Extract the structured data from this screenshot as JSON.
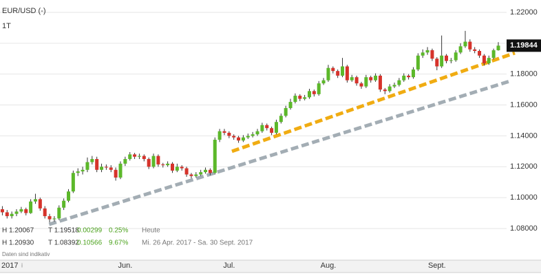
{
  "chart_data": {
    "type": "candlestick",
    "title": "EUR/USD (-)",
    "interval": "1T",
    "categories": [
      "2017",
      null,
      null,
      null,
      null,
      null,
      null,
      null,
      null,
      null,
      null,
      null,
      null,
      null,
      null,
      null,
      null,
      null,
      null,
      null,
      null,
      null,
      null,
      null,
      null,
      null,
      "Jun.",
      null,
      null,
      null,
      null,
      null,
      null,
      null,
      null,
      null,
      null,
      null,
      null,
      null,
      null,
      null,
      null,
      null,
      null,
      null,
      null,
      null,
      "Jul.",
      null,
      null,
      null,
      null,
      null,
      null,
      null,
      null,
      null,
      null,
      null,
      null,
      null,
      null,
      null,
      null,
      null,
      null,
      null,
      null,
      "Aug.",
      null,
      null,
      null,
      null,
      null,
      null,
      null,
      null,
      null,
      null,
      null,
      null,
      null,
      null,
      null,
      null,
      null,
      null,
      null,
      null,
      null,
      null,
      "Sept.",
      null,
      null,
      null,
      null,
      null,
      null,
      null,
      null,
      null,
      null,
      null,
      null,
      null
    ],
    "open": [
      1.0925,
      1.0905,
      1.088,
      1.0895,
      1.091,
      1.0925,
      1.09,
      1.0975,
      1.099,
      1.093,
      1.088,
      1.086,
      1.0865,
      1.0935,
      1.098,
      1.104,
      1.116,
      1.117,
      1.118,
      1.123,
      1.125,
      1.118,
      1.12,
      1.1195,
      1.118,
      1.113,
      1.122,
      1.125,
      1.128,
      1.1265,
      1.127,
      1.125,
      1.12,
      1.127,
      1.1215,
      1.121,
      1.122,
      1.1175,
      1.12,
      1.119,
      1.115,
      1.114,
      1.115,
      1.1165,
      1.118,
      1.116,
      1.1375,
      1.143,
      1.142,
      1.14,
      1.139,
      1.137,
      1.139,
      1.14,
      1.141,
      1.143,
      1.147,
      1.145,
      1.142,
      1.149,
      1.153,
      1.158,
      1.162,
      1.166,
      1.164,
      1.165,
      1.169,
      1.167,
      1.174,
      1.176,
      1.184,
      1.182,
      1.179,
      1.185,
      1.176,
      1.178,
      1.174,
      1.172,
      1.178,
      1.176,
      1.179,
      1.17,
      1.169,
      1.172,
      1.173,
      1.176,
      1.179,
      1.178,
      1.183,
      1.192,
      1.194,
      1.1955,
      1.19,
      1.185,
      1.192,
      1.1885,
      1.189,
      1.194,
      1.198,
      1.201,
      1.196,
      1.195,
      1.192,
      1.187,
      1.1905,
      1.19545
    ],
    "high": [
      1.0945,
      1.092,
      1.091,
      1.0925,
      1.094,
      1.0935,
      1.099,
      1.1025,
      1.1,
      1.0945,
      1.0895,
      1.088,
      1.095,
      1.0995,
      1.1055,
      1.1175,
      1.119,
      1.12,
      1.126,
      1.127,
      1.1265,
      1.122,
      1.1215,
      1.121,
      1.1195,
      1.1235,
      1.1265,
      1.1295,
      1.129,
      1.1285,
      1.128,
      1.126,
      1.1285,
      1.128,
      1.1225,
      1.1235,
      1.123,
      1.122,
      1.121,
      1.12,
      1.116,
      1.1165,
      1.118,
      1.1195,
      1.119,
      1.139,
      1.1445,
      1.1445,
      1.143,
      1.141,
      1.14,
      1.1405,
      1.1415,
      1.1425,
      1.1445,
      1.1485,
      1.148,
      1.146,
      1.1505,
      1.1545,
      1.1595,
      1.164,
      1.1675,
      1.167,
      1.1665,
      1.1705,
      1.17,
      1.1755,
      1.1775,
      1.186,
      1.185,
      1.183,
      1.1905,
      1.186,
      1.1795,
      1.179,
      1.175,
      1.1795,
      1.179,
      1.1805,
      1.18,
      1.171,
      1.1735,
      1.1745,
      1.1775,
      1.1805,
      1.18,
      1.1845,
      1.1935,
      1.196,
      1.1975,
      1.1965,
      1.191,
      1.205,
      1.193,
      1.1905,
      1.1955,
      1.2,
      1.208,
      1.2025,
      1.1975,
      1.196,
      1.193,
      1.192,
      1.1965,
      1.20067
    ],
    "low": [
      1.0885,
      1.0865,
      1.0865,
      1.088,
      1.09,
      1.0885,
      1.0895,
      1.096,
      1.0915,
      1.0865,
      1.084,
      1.0845,
      1.0855,
      1.092,
      1.097,
      1.103,
      1.114,
      1.115,
      1.1165,
      1.1215,
      1.1165,
      1.1165,
      1.118,
      1.1165,
      1.111,
      1.112,
      1.1205,
      1.124,
      1.125,
      1.125,
      1.1235,
      1.1185,
      1.119,
      1.12,
      1.1195,
      1.12,
      1.116,
      1.1165,
      1.1175,
      1.1135,
      1.1125,
      1.113,
      1.114,
      1.1155,
      1.1145,
      1.115,
      1.136,
      1.1405,
      1.1385,
      1.1375,
      1.1355,
      1.136,
      1.138,
      1.139,
      1.14,
      1.142,
      1.1435,
      1.1405,
      1.141,
      1.148,
      1.152,
      1.157,
      1.161,
      1.1625,
      1.163,
      1.164,
      1.1655,
      1.166,
      1.173,
      1.175,
      1.1805,
      1.1775,
      1.178,
      1.1745,
      1.175,
      1.1725,
      1.1705,
      1.171,
      1.1745,
      1.175,
      1.1685,
      1.167,
      1.168,
      1.171,
      1.172,
      1.175,
      1.1765,
      1.177,
      1.182,
      1.1905,
      1.1925,
      1.1885,
      1.1825,
      1.184,
      1.187,
      1.187,
      1.188,
      1.193,
      1.197,
      1.1945,
      1.1935,
      1.1905,
      1.1855,
      1.186,
      1.1895,
      1.19518
    ],
    "close": [
      1.0905,
      1.088,
      1.0895,
      1.091,
      1.0925,
      1.09,
      1.0975,
      1.099,
      1.093,
      1.088,
      1.086,
      1.0865,
      1.0935,
      1.098,
      1.104,
      1.116,
      1.117,
      1.118,
      1.123,
      1.125,
      1.118,
      1.12,
      1.1195,
      1.118,
      1.113,
      1.122,
      1.125,
      1.128,
      1.1265,
      1.127,
      1.125,
      1.12,
      1.127,
      1.1215,
      1.121,
      1.122,
      1.1175,
      1.12,
      1.119,
      1.115,
      1.114,
      1.115,
      1.1165,
      1.118,
      1.116,
      1.1375,
      1.143,
      1.142,
      1.14,
      1.139,
      1.137,
      1.139,
      1.14,
      1.141,
      1.143,
      1.147,
      1.145,
      1.142,
      1.149,
      1.153,
      1.158,
      1.162,
      1.166,
      1.164,
      1.165,
      1.169,
      1.167,
      1.174,
      1.176,
      1.184,
      1.182,
      1.179,
      1.185,
      1.176,
      1.178,
      1.174,
      1.172,
      1.178,
      1.176,
      1.179,
      1.17,
      1.169,
      1.172,
      1.173,
      1.176,
      1.179,
      1.178,
      1.183,
      1.192,
      1.194,
      1.1955,
      1.19,
      1.185,
      1.192,
      1.1885,
      1.189,
      1.194,
      1.198,
      1.201,
      1.196,
      1.195,
      1.192,
      1.187,
      1.1905,
      1.19545,
      1.19844
    ],
    "up_color": "#5cb82a",
    "down_color": "#d6332b",
    "wick_color": "#333333",
    "ylim": [
      1.0595,
      1.228
    ],
    "yticks": [
      {
        "value": 1.08,
        "label": "1.08000"
      },
      {
        "value": 1.1,
        "label": "1.10000"
      },
      {
        "value": 1.12,
        "label": "1.12000"
      },
      {
        "value": 1.14,
        "label": "1.14000"
      },
      {
        "value": 1.16,
        "label": "1.16000"
      },
      {
        "value": 1.18,
        "label": "1.18000"
      },
      {
        "value": 1.2,
        "label": "1.20000"
      },
      {
        "value": 1.22,
        "label": "1.22000"
      }
    ],
    "grid": true,
    "last_price": 1.19844,
    "trendlines": [
      {
        "color": "#f0ac12",
        "x": [
          48.6,
          108.5
        ],
        "y": [
          1.13,
          1.1937
        ]
      },
      {
        "color": "#a3adb4",
        "x": [
          9.9,
          107.4
        ],
        "y": [
          1.0827,
          1.1754
        ]
      }
    ],
    "info_rows": [
      {
        "high": "H 1.20067",
        "low": "T 1.19518",
        "change": "0.00299",
        "percent": "0.25%",
        "period": "Heute"
      },
      {
        "high": "H 1.20930",
        "low": "T 1.08392",
        "change": "0.10566",
        "percent": "9.67%",
        "period": "Mi. 26 Apr. 2017 - Sa. 30 Sept. 2017"
      }
    ],
    "note": "Daten sind indikativ",
    "info_icon": "i"
  }
}
